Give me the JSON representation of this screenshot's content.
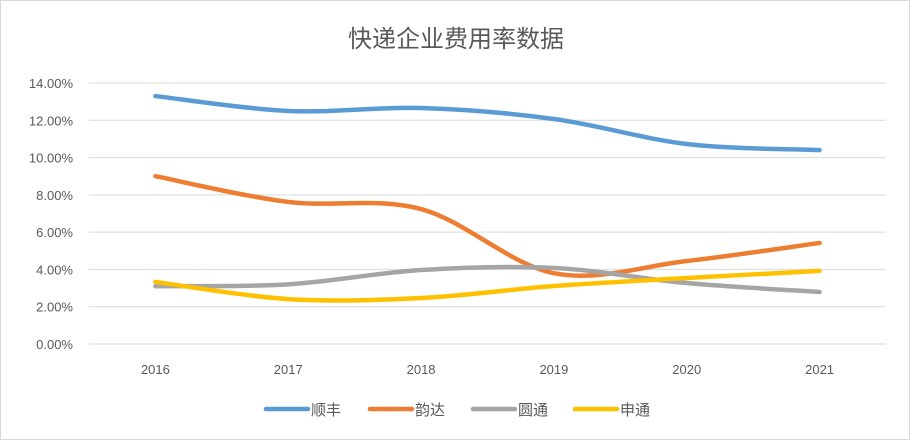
{
  "chart_data": {
    "type": "line",
    "title": "快递企业费用率数据",
    "smooth": true,
    "categories": [
      "2016",
      "2017",
      "2018",
      "2019",
      "2020",
      "2021"
    ],
    "ylim": [
      0,
      14
    ],
    "yticks": [
      "0.00%",
      "2.00%",
      "4.00%",
      "6.00%",
      "8.00%",
      "10.00%",
      "12.00%",
      "14.00%"
    ],
    "grid": true,
    "legend_position": "bottom",
    "series": [
      {
        "name": "顺丰",
        "color": "#5B9BD5",
        "values": [
          13.3,
          12.5,
          12.66,
          12.07,
          10.73,
          10.4
        ]
      },
      {
        "name": "韵达",
        "color": "#ED7D31",
        "values": [
          9.0,
          7.62,
          7.24,
          3.8,
          4.45,
          5.42
        ]
      },
      {
        "name": "圆通",
        "color": "#A5A5A5",
        "values": [
          3.1,
          3.2,
          3.97,
          4.08,
          3.27,
          2.79
        ]
      },
      {
        "name": "申通",
        "color": "#FFC000",
        "values": [
          3.33,
          2.41,
          2.47,
          3.11,
          3.54,
          3.92
        ]
      }
    ]
  }
}
